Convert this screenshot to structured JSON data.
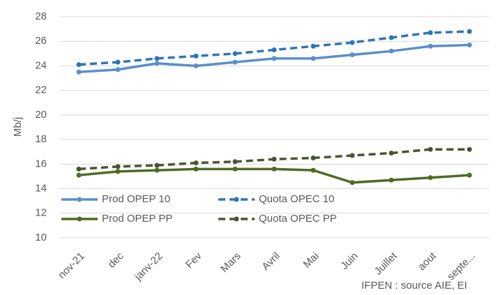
{
  "chart_data": {
    "type": "line",
    "y_label": "Mb/j",
    "source": "IFPEN : source AIE, EI",
    "categories": [
      "nov-21",
      "dec",
      "janv-22",
      "Fev",
      "Mars",
      "Avril",
      "Mai",
      "Juin",
      "Juillet",
      "aout",
      "septe..."
    ],
    "series": [
      {
        "name": "Prod OPEP 10",
        "color": "#5b8fc9",
        "dash": false,
        "values": [
          23.5,
          23.7,
          24.2,
          24.0,
          24.3,
          24.6,
          24.6,
          24.9,
          25.2,
          25.6,
          25.7
        ]
      },
      {
        "name": "Quota OPEC 10",
        "color": "#2e75b6",
        "dash": true,
        "values": [
          24.1,
          24.3,
          24.6,
          24.8,
          25.0,
          25.3,
          25.6,
          25.9,
          26.3,
          26.7,
          26.8
        ]
      },
      {
        "name": "Prod OPEP PP",
        "color": "#4f6b24",
        "dash": false,
        "values": [
          15.1,
          15.4,
          15.5,
          15.6,
          15.6,
          15.6,
          15.5,
          14.5,
          14.7,
          14.9,
          15.1
        ]
      },
      {
        "name": "Quota OPEC PP",
        "color": "#4a5530",
        "dash": true,
        "values": [
          15.6,
          15.8,
          15.9,
          16.1,
          16.2,
          16.4,
          16.5,
          16.7,
          16.9,
          17.2,
          17.2
        ]
      }
    ],
    "ylim": [
      10,
      28
    ],
    "yticks": [
      10,
      12,
      14,
      16,
      18,
      20,
      22,
      24,
      26,
      28
    ],
    "grid": true,
    "legend": "lower-left"
  }
}
